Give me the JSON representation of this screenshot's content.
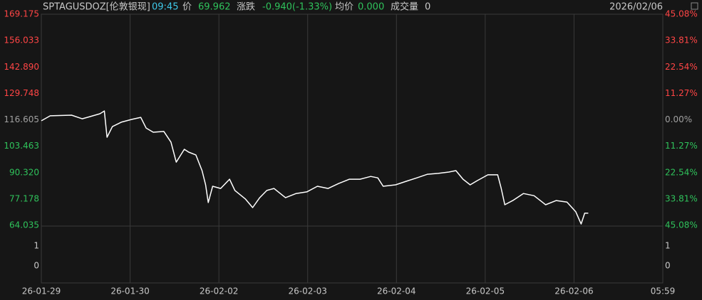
{
  "header": {
    "symbol": "SPTAGUSDOZ[伦敦银现]",
    "time": "09:45",
    "price_label": "价",
    "price": "69.962",
    "change_label": "涨跌",
    "change": "-0.940(-1.33%)",
    "avg_label": "均价",
    "avg": "0.000",
    "volume_label": "成交量",
    "volume": "0",
    "date": "2026/02/06"
  },
  "chart_data": {
    "type": "line",
    "color": "#ffffff",
    "grid": true,
    "up_color": "#ff4545",
    "down_color": "#2fc25b",
    "flat_color": "#a0a0a0",
    "x": [
      0,
      0.1,
      0.34,
      0.46,
      0.58,
      0.66,
      0.71,
      0.74,
      0.8,
      0.9,
      1.02,
      1.12,
      1.18,
      1.26,
      1.38,
      1.46,
      1.52,
      1.61,
      1.66,
      1.74,
      1.81,
      1.85,
      1.88,
      1.93,
      2.02,
      2.12,
      2.18,
      2.3,
      2.38,
      2.46,
      2.54,
      2.62,
      2.75,
      2.87,
      2.99,
      3.11,
      3.23,
      3.35,
      3.47,
      3.59,
      3.71,
      3.79,
      3.85,
      3.99,
      4.11,
      4.23,
      4.35,
      4.47,
      4.59,
      4.67,
      4.75,
      4.83,
      4.91,
      5.03,
      5.14,
      5.18,
      5.22,
      5.31,
      5.43,
      5.55,
      5.68,
      5.8,
      5.92,
      6.02,
      6.08,
      6.12,
      6.16
    ],
    "values": [
      116.1,
      118.6,
      118.9,
      117.1,
      118.6,
      119.6,
      121.0,
      107.9,
      113.2,
      115.4,
      116.8,
      117.8,
      112.5,
      110.4,
      110.8,
      105.5,
      95.5,
      101.9,
      100.5,
      99.1,
      91.3,
      84.2,
      75.4,
      83.5,
      82.4,
      87.0,
      81.4,
      77.1,
      72.9,
      77.8,
      81.4,
      82.4,
      77.8,
      79.9,
      80.7,
      83.5,
      82.4,
      84.9,
      87.0,
      87.0,
      88.4,
      87.7,
      83.5,
      84.2,
      86.0,
      87.7,
      89.5,
      89.9,
      90.6,
      91.3,
      87.0,
      84.2,
      86.3,
      89.2,
      89.2,
      82.4,
      74.3,
      76.4,
      79.9,
      78.8,
      74.3,
      76.4,
      75.6,
      70.8,
      64.7,
      70.1,
      70.1
    ],
    "xlim": [
      0,
      7
    ],
    "xticks": [
      {
        "value": 0,
        "label": "26-01-29"
      },
      {
        "value": 1,
        "label": "26-01-30"
      },
      {
        "value": 2,
        "label": "26-02-02"
      },
      {
        "value": 3,
        "label": "26-02-03"
      },
      {
        "value": 4,
        "label": "26-02-04"
      },
      {
        "value": 5,
        "label": "26-02-05"
      },
      {
        "value": 6,
        "label": "26-02-06"
      },
      {
        "value": 7,
        "label": "05:59"
      }
    ],
    "ylim": [
      64.035,
      169.175
    ],
    "base": 116.605,
    "yticks": [
      169.175,
      {
        "value": 156.033,
        "label": "156.033"
      },
      {
        "value": 142.89,
        "label": "142.890"
      },
      129.748,
      116.605,
      103.463,
      {
        "value": 90.32,
        "label": "90.320"
      },
      77.178,
      64.035
    ],
    "y2lim": [
      -45.08,
      45.08
    ],
    "y2ticks": [
      {
        "value": 45.08,
        "label": "45.08%"
      },
      {
        "value": 33.81,
        "label": "33.81%"
      },
      {
        "value": 22.54,
        "label": "22.54%"
      },
      {
        "value": 11.27,
        "label": "11.27%"
      },
      {
        "value": 0,
        "label": "0.00%"
      },
      {
        "value": -11.27,
        "label": "11.27%"
      },
      {
        "value": -22.54,
        "label": "22.54%"
      },
      {
        "value": -33.81,
        "label": "33.81%"
      },
      {
        "value": -45.08,
        "label": "45.08%"
      }
    ],
    "volume_yticks": [
      1,
      0
    ]
  }
}
